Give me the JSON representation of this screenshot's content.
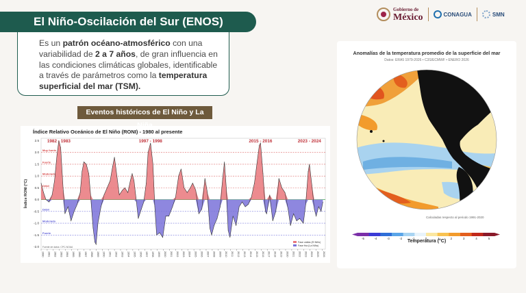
{
  "header": {
    "title": "El Niño-Oscilación del Sur (ENOS)"
  },
  "logos": {
    "gobierno_top": "Gobierno de",
    "gobierno_main": "México",
    "conagua": "CONAGUA",
    "smn": "SMN"
  },
  "intro": {
    "t1": "Es un ",
    "b1": "patrón océano-atmosférico",
    "t2": " con una variabilidad de ",
    "b2": "2 a 7 años",
    "t3": ", de gran influencia en las condiciones climáticas globales, identificable a través de parámetros como la ",
    "b3": "temperatura superficial del mar (TSM)."
  },
  "events": {
    "title": "Eventos históricos de El Niño y La Niña"
  },
  "chart_data": {
    "type": "area",
    "title": "Índice Relativo Oceánico de El Niño (RONI) - 1980 al presente",
    "xlabel": "",
    "ylabel": "Índice RONI (°C)",
    "ylim": [
      -2.1,
      2.6
    ],
    "yticks": [
      "2.5",
      "2.0",
      "1.5",
      "1.0",
      "0.5",
      "0.0",
      "-0.5",
      "-1.0",
      "-1.5",
      "-2.0"
    ],
    "x": [
      1980,
      1980.4,
      1980.8,
      1981.3,
      1981.8,
      1982.2,
      1982.6,
      1982.9,
      1983.2,
      1983.6,
      1983.9,
      1984.4,
      1984.9,
      1985.4,
      1985.9,
      1986.4,
      1986.7,
      1987.0,
      1987.4,
      1987.8,
      1988.1,
      1988.5,
      1988.8,
      1989.0,
      1989.3,
      1989.8,
      1990.3,
      1990.8,
      1991.3,
      1991.7,
      1992.0,
      1992.4,
      1992.8,
      1993.3,
      1993.7,
      1994.2,
      1994.6,
      1994.9,
      1995.2,
      1995.6,
      1995.9,
      1996.4,
      1996.8,
      1997.2,
      1997.5,
      1997.9,
      1998.3,
      1998.6,
      1998.9,
      1999.4,
      1999.9,
      2000.4,
      2000.9,
      2001.5,
      2002.0,
      2002.5,
      2002.9,
      2003.4,
      2003.9,
      2004.4,
      2004.8,
      2005.3,
      2005.8,
      2006.3,
      2006.8,
      2007.2,
      2007.6,
      2007.9,
      2008.3,
      2008.8,
      2009.3,
      2009.7,
      2010.0,
      2010.3,
      2010.6,
      2010.9,
      2011.4,
      2011.9,
      2012.4,
      2012.9,
      2013.4,
      2013.9,
      2014.4,
      2014.9,
      2015.3,
      2015.7,
      2015.9,
      2016.3,
      2016.7,
      2016.9,
      2017.4,
      2017.9,
      2018.4,
      2018.9,
      2019.4,
      2019.9,
      2020.4,
      2020.8,
      2021.3,
      2021.8,
      2022.3,
      2022.9,
      2023.3,
      2023.7,
      2023.9,
      2024.3,
      2024.7,
      2025.0,
      2025.4,
      2025.8,
      2026.1
    ],
    "values": [
      0.7,
      0.3,
      0.0,
      -0.1,
      0.2,
      0.8,
      1.9,
      2.5,
      2.2,
      0.5,
      -0.6,
      -0.3,
      -0.9,
      -0.5,
      -0.2,
      0.3,
      1.2,
      1.6,
      1.5,
      1.1,
      0.2,
      -1.2,
      -1.8,
      -1.9,
      -1.0,
      -0.3,
      0.2,
      0.5,
      0.8,
      1.4,
      1.8,
      1.0,
      0.2,
      0.4,
      0.5,
      0.3,
      0.8,
      1.1,
      0.8,
      -0.1,
      -0.8,
      -0.4,
      -0.1,
      0.7,
      2.0,
      2.4,
      1.5,
      -0.3,
      -1.5,
      -1.4,
      -1.6,
      -0.7,
      -0.7,
      -0.3,
      0.1,
      1.0,
      1.3,
      0.5,
      0.3,
      0.5,
      0.7,
      0.4,
      -0.6,
      -0.4,
      0.9,
      0.3,
      -1.2,
      -1.5,
      -1.1,
      -0.8,
      -0.3,
      0.9,
      1.6,
      0.5,
      -1.3,
      -1.6,
      -0.7,
      -1.1,
      -0.3,
      -0.1,
      -0.3,
      -0.2,
      0.1,
      0.7,
      1.5,
      2.3,
      2.4,
      1.1,
      -0.5,
      -0.6,
      0.2,
      -0.9,
      -0.5,
      0.9,
      0.5,
      0.3,
      -0.4,
      -1.1,
      -0.6,
      -0.9,
      -0.8,
      -1.0,
      -0.2,
      1.2,
      1.5,
      0.6,
      -0.4,
      -0.7,
      -0.3,
      -0.5,
      -0.1
    ],
    "thresholds": [
      {
        "value": 2.0,
        "label": "Muy fuerte",
        "color": "#d64545"
      },
      {
        "value": 1.5,
        "label": "Fuerte",
        "color": "#d64545"
      },
      {
        "value": 1.0,
        "label": "Moderado",
        "color": "#d64545"
      },
      {
        "value": 0.5,
        "label": "Débil",
        "color": "#d64545"
      },
      {
        "value": -0.5,
        "label": "Débil",
        "color": "#5b5bd6"
      },
      {
        "value": -1.0,
        "label": "Moderado",
        "color": "#5b5bd6"
      },
      {
        "value": -1.5,
        "label": "Fuerte",
        "color": "#5b5bd6"
      }
    ],
    "event_labels": [
      {
        "label": "1982 - 1983",
        "x": 1982.9
      },
      {
        "label": "1997 - 1998",
        "x": 1997.9
      },
      {
        "label": "2015 - 2016",
        "x": 2015.9
      },
      {
        "label": "2023 - 2024",
        "x": 2023.9
      }
    ],
    "legend": {
      "warm": "Fase cálida (El Niño)",
      "cold": "Fase fría (La Niña)",
      "position": "bottom-right"
    },
    "source": "Fuente de datos: CPC-NOAA",
    "colors": {
      "warm": "#e9777b",
      "cold": "#7a72d9"
    }
  },
  "map": {
    "title": "Anomalías de la temperatura promedio de la superficie del mar",
    "subtitle": "Datos: ERA5 1979-2026 • C3S/ECMWF • ENERO 2026",
    "note": "Calculadas respecto al periodo 1991-2020",
    "colorbar_label": "Temperatura (°C)",
    "colorbar_ticks": [
      "-5",
      "-4",
      "-3",
      "-2",
      "-1",
      "0",
      "1",
      "2",
      "3",
      "4",
      "5"
    ],
    "colorbar_colors": [
      "#7b2fa8",
      "#3b3bd6",
      "#2f6fd8",
      "#5aa5e8",
      "#a8d4f2",
      "#e8f3fb",
      "#fbe7a0",
      "#f8c251",
      "#f29b2c",
      "#e35f1e",
      "#c1281b",
      "#8a1a2a"
    ]
  }
}
